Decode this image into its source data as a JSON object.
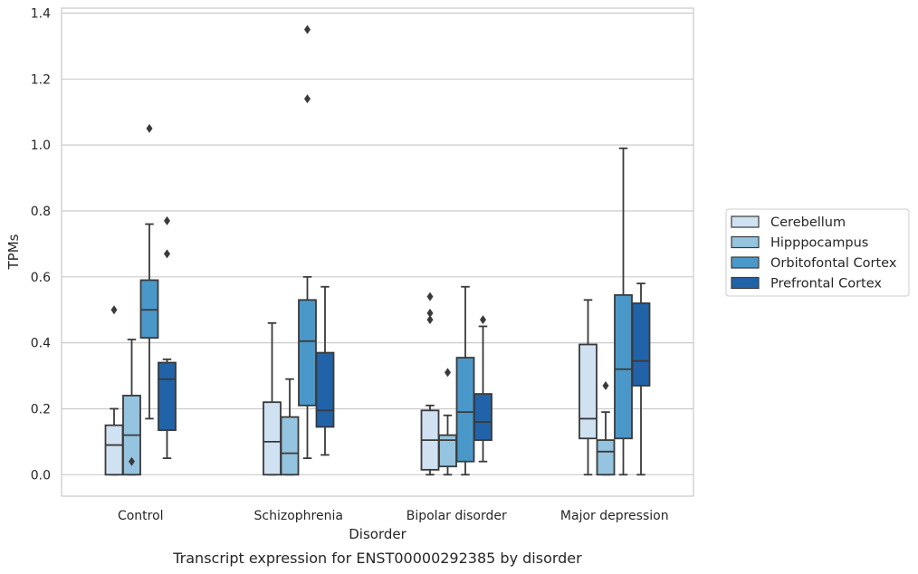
{
  "chart_data": {
    "type": "box",
    "caption": "Transcript expression for ENST00000292385 by disorder",
    "xlabel": "Disorder",
    "ylabel": "TPMs",
    "ylim": [
      -0.065,
      1.415
    ],
    "yticks": [
      "0.0",
      "0.2",
      "0.4",
      "0.6",
      "0.8",
      "1.0",
      "1.2",
      "1.4"
    ],
    "grid": true,
    "legend_position": "right",
    "categories": [
      "Control",
      "Schizophrenia",
      "Bipolar disorder",
      "Major depression"
    ],
    "series": [
      {
        "name": "Cerebellum",
        "color": "#d0e1f2",
        "boxes": [
          {
            "whislo": 0.0,
            "q1": 0.0,
            "med": 0.09,
            "q3": 0.15,
            "whishi": 0.2,
            "fliers": [
              0.5
            ]
          },
          {
            "whislo": 0.0,
            "q1": 0.0,
            "med": 0.1,
            "q3": 0.22,
            "whishi": 0.46,
            "fliers": []
          },
          {
            "whislo": 0.0,
            "q1": 0.015,
            "med": 0.105,
            "q3": 0.195,
            "whishi": 0.21,
            "fliers": [
              0.47,
              0.49,
              0.54
            ]
          },
          {
            "whislo": 0.0,
            "q1": 0.11,
            "med": 0.17,
            "q3": 0.395,
            "whishi": 0.53,
            "fliers": []
          }
        ]
      },
      {
        "name": "Hipppocampus",
        "color": "#94c4df",
        "boxes": [
          {
            "whislo": 0.0,
            "q1": 0.0,
            "med": 0.12,
            "q3": 0.24,
            "whishi": 0.41,
            "fliers": [
              0.04
            ]
          },
          {
            "whislo": 0.0,
            "q1": 0.0,
            "med": 0.065,
            "q3": 0.175,
            "whishi": 0.29,
            "fliers": []
          },
          {
            "whislo": 0.0,
            "q1": 0.025,
            "med": 0.105,
            "q3": 0.12,
            "whishi": 0.18,
            "fliers": [
              0.31
            ]
          },
          {
            "whislo": 0.0,
            "q1": 0.0,
            "med": 0.07,
            "q3": 0.105,
            "whishi": 0.19,
            "fliers": [
              0.27
            ]
          }
        ]
      },
      {
        "name": "Orbitofontal Cortex",
        "color": "#4a98c9",
        "boxes": [
          {
            "whislo": 0.17,
            "q1": 0.415,
            "med": 0.5,
            "q3": 0.59,
            "whishi": 0.76,
            "fliers": [
              1.05
            ]
          },
          {
            "whislo": 0.05,
            "q1": 0.21,
            "med": 0.405,
            "q3": 0.53,
            "whishi": 0.6,
            "fliers": [
              1.14,
              1.35
            ]
          },
          {
            "whislo": 0.0,
            "q1": 0.04,
            "med": 0.19,
            "q3": 0.355,
            "whishi": 0.57,
            "fliers": []
          },
          {
            "whislo": 0.0,
            "q1": 0.11,
            "med": 0.32,
            "q3": 0.545,
            "whishi": 0.99,
            "fliers": []
          }
        ]
      },
      {
        "name": "Prefrontal Cortex",
        "color": "#2163a8",
        "boxes": [
          {
            "whislo": 0.05,
            "q1": 0.135,
            "med": 0.29,
            "q3": 0.34,
            "whishi": 0.35,
            "fliers": [
              0.67,
              0.77
            ]
          },
          {
            "whislo": 0.06,
            "q1": 0.145,
            "med": 0.195,
            "q3": 0.37,
            "whishi": 0.57,
            "fliers": []
          },
          {
            "whislo": 0.04,
            "q1": 0.105,
            "med": 0.16,
            "q3": 0.245,
            "whishi": 0.45,
            "fliers": [
              0.47
            ]
          },
          {
            "whislo": 0.0,
            "q1": 0.27,
            "med": 0.345,
            "q3": 0.52,
            "whishi": 0.58,
            "fliers": []
          }
        ]
      }
    ]
  }
}
